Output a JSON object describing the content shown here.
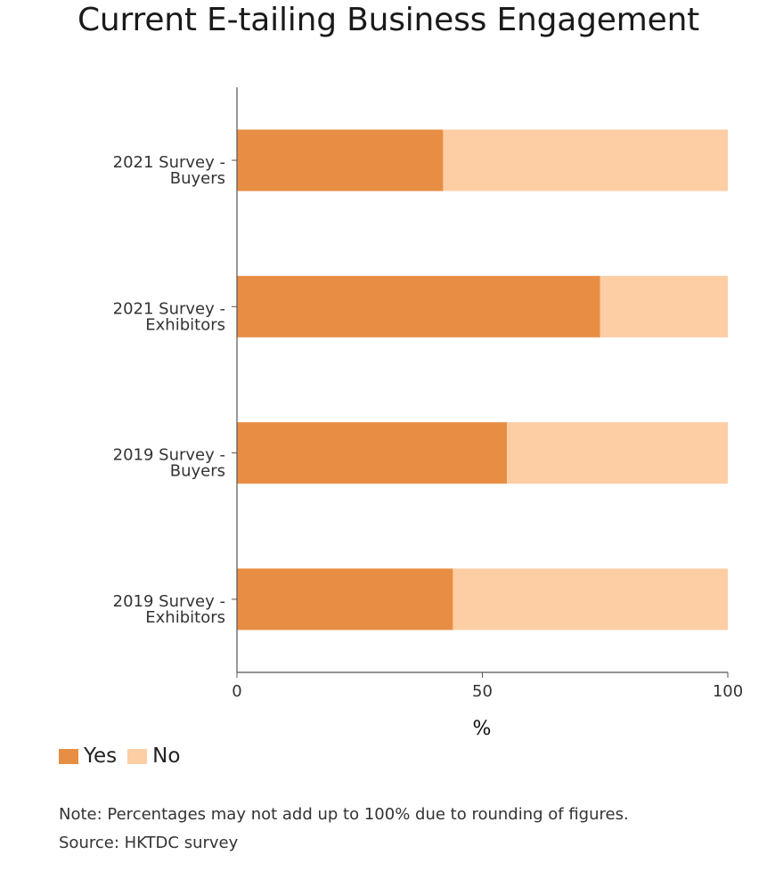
{
  "title": "Current E-tailing Business Engagement",
  "legend": [
    {
      "label": "Yes",
      "color": "#e88e44"
    },
    {
      "label": "No",
      "color": "#fdcda4"
    }
  ],
  "note": "Note: Percentages may not add up to 100% due to rounding of figures.",
  "source": "Source: HKTDC survey",
  "chart_data": {
    "type": "bar",
    "orientation": "horizontal",
    "stacked": true,
    "title": "Current E-tailing Business Engagement",
    "xlabel": "%",
    "ylabel": "",
    "xlim": [
      0,
      100
    ],
    "xticks": [
      0,
      50,
      100
    ],
    "categories": [
      {
        "line1": "2021 Survey -",
        "line2": "Buyers"
      },
      {
        "line1": "2021 Survey -",
        "line2": "Exhibitors"
      },
      {
        "line1": "2019 Survey -",
        "line2": "Buyers"
      },
      {
        "line1": "2019 Survey -",
        "line2": "Exhibitors"
      }
    ],
    "series": [
      {
        "name": "Yes",
        "color": "#e88e44",
        "values": [
          42,
          74,
          55,
          44
        ]
      },
      {
        "name": "No",
        "color": "#fdcda4",
        "values": [
          58,
          26,
          45,
          56
        ]
      }
    ],
    "grid": false,
    "legend_position": "bottom-left"
  }
}
